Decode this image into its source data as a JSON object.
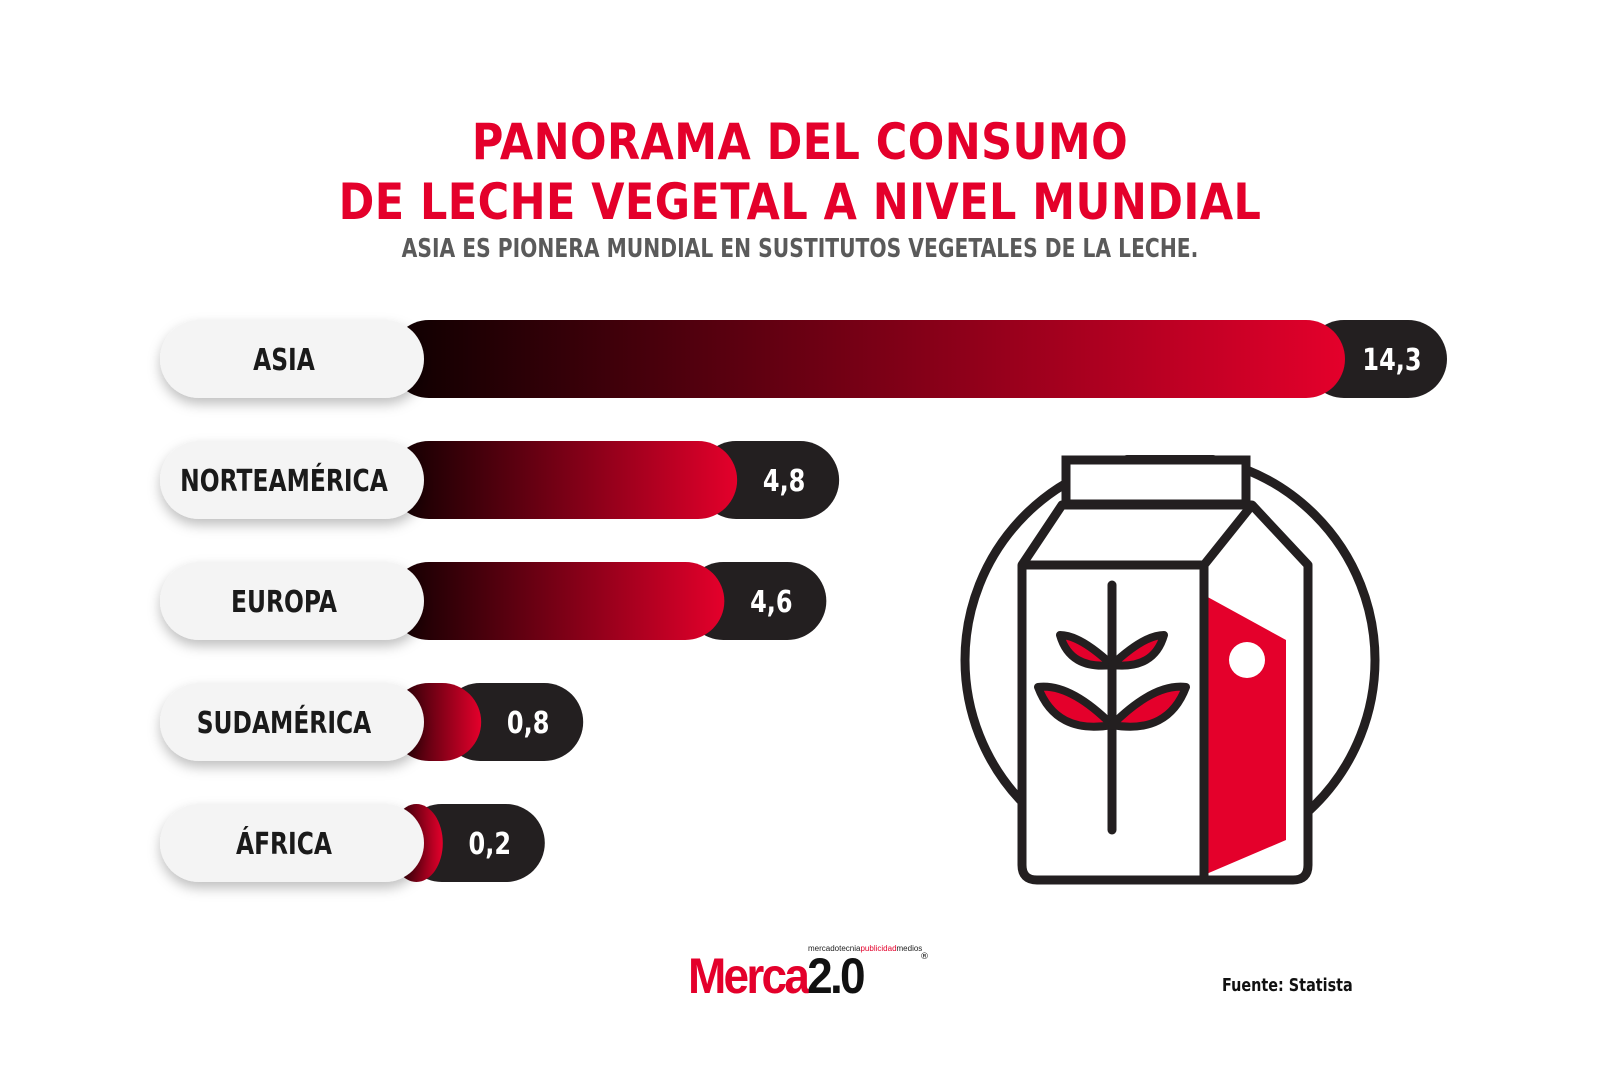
{
  "title_line1": "PANORAMA DEL CONSUMO",
  "title_line2": "DE LECHE VEGETAL A NIVEL MUNDIAL",
  "subtitle": "ASIA ES PIONERA MUNDIAL EN SUSTITUTOS VEGETALES DE LA LECHE.",
  "source": "Fuente: Statista",
  "logo": {
    "tagline_pre": "mercadotecnia",
    "tagline_hl": "publicidad",
    "tagline_post": "medios",
    "word_main": "Merca",
    "word_version": "2.0",
    "reg": "®"
  },
  "colors": {
    "accent": "#e4002b",
    "bar_dark": "#0d0000",
    "value_cap": "#231f20",
    "label_pill": "#f4f4f4"
  },
  "illustration": {
    "icon": "plant-milk-carton-icon"
  },
  "chart_data": {
    "type": "bar",
    "orientation": "horizontal",
    "categories": [
      "ASIA",
      "NORTEAMÉRICA",
      "EUROPA",
      "SUDAMÉRICA",
      "ÁFRICA"
    ],
    "values": [
      14.3,
      4.8,
      4.6,
      0.8,
      0.2
    ],
    "value_labels": [
      "14,3",
      "4,8",
      "4,6",
      "0,8",
      "0,2"
    ],
    "xlim": [
      0,
      14.3
    ],
    "grid": false,
    "legend": "none"
  }
}
